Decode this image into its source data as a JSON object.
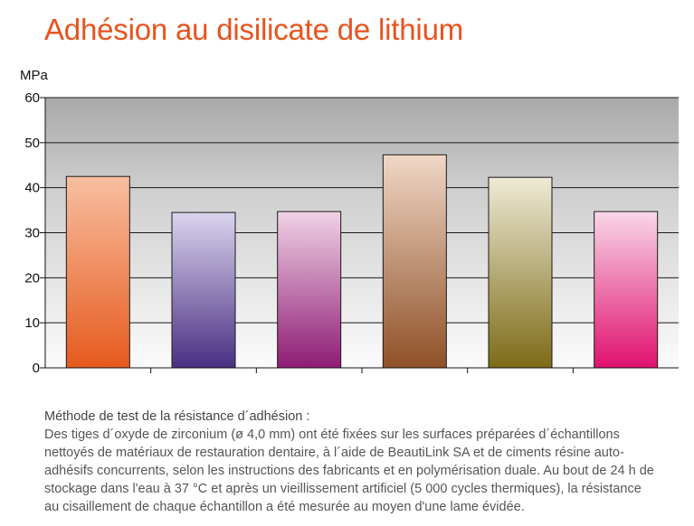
{
  "title": "Adhésion au disilicate de lithium",
  "chart_data": {
    "type": "bar",
    "ylabel": "MPa",
    "ylim": [
      0,
      60
    ],
    "yticks": [
      0,
      10,
      20,
      30,
      40,
      50,
      60
    ],
    "grid": true,
    "values": [
      42.5,
      34.5,
      34.7,
      47.3,
      42.3,
      34.7
    ],
    "colors": [
      {
        "top": "#f7bfa0",
        "bottom": "#e65a1e"
      },
      {
        "top": "#dad4ee",
        "bottom": "#4a2f82"
      },
      {
        "top": "#f1d2e6",
        "bottom": "#8e1c74"
      },
      {
        "top": "#f0d7c6",
        "bottom": "#8f5128"
      },
      {
        "top": "#eeead6",
        "bottom": "#7e6b17"
      },
      {
        "top": "#f9d7e8",
        "bottom": "#e0116f"
      }
    ]
  },
  "method": {
    "title": "Méthode de test de la résistance d´adhésion :",
    "lines": [
      "Des tiges d´oxyde de zirconium (ø 4,0 mm) ont été fixées sur les surfaces préparées d´échantillons",
      "nettoyés de matériaux de restauration dentaire, à l´aide de BeautiLink SA et de ciments résine auto-",
      "adhésifs concurrents, selon les instructions des fabricants et en polymérisation duale. Au bout de 24 h de",
      "stockage dans l'eau à 37 °C et après un vieillissement artificiel (5 000 cycles thermiques), la résistance",
      "au cisaillement de chaque échantillon a été mesurée au moyen d'une lame évidée."
    ]
  }
}
